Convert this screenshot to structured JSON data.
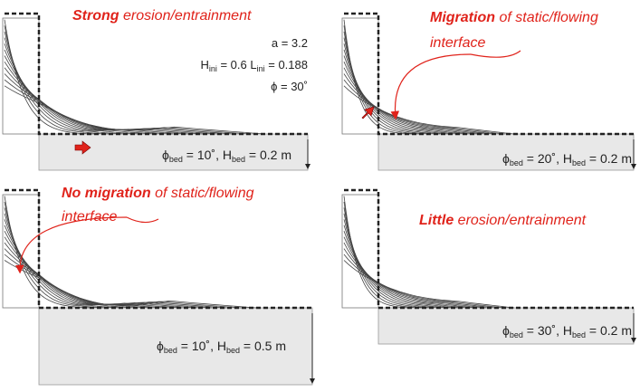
{
  "panels": [
    {
      "emphasis": "Strong",
      "caption": [
        "erosion/entrainment"
      ],
      "params": {
        "a": "a = 3.2",
        "h_label": "H",
        "h_sub": "ini",
        "h_value": "= 0.6",
        "l_label": "L",
        "l_sub": "ini",
        "l_value": "= 0.188",
        "phi": "ϕ = 30˚"
      },
      "bed": {
        "phi_label": "ϕ",
        "phi_sub": "bed",
        "phi_value": "= 10˚,",
        "h_label": "H",
        "h_sub": "bed",
        "h_value": "= 0.2 m"
      }
    },
    {
      "emphasis": "Migration",
      "caption": [
        "of static/flowing",
        "interface"
      ],
      "bed": {
        "phi_label": "ϕ",
        "phi_sub": "bed",
        "phi_value": "= 20˚,",
        "h_label": "H",
        "h_sub": "bed",
        "h_value": "= 0.2 m"
      }
    },
    {
      "emphasis": "No migration",
      "caption": [
        "of static/flowing",
        "interface"
      ],
      "bed": {
        "phi_label": "ϕ",
        "phi_sub": "bed",
        "phi_value": "= 10˚,",
        "h_label": "H",
        "h_sub": "bed",
        "h_value": "= 0.5 m"
      }
    },
    {
      "emphasis": "Little",
      "caption": [
        "erosion/entrainment"
      ],
      "bed": {
        "phi_label": "ϕ",
        "phi_sub": "bed",
        "phi_value": "= 30˚,",
        "h_label": "H",
        "h_sub": "bed",
        "h_value": "= 0.2 m"
      }
    }
  ]
}
